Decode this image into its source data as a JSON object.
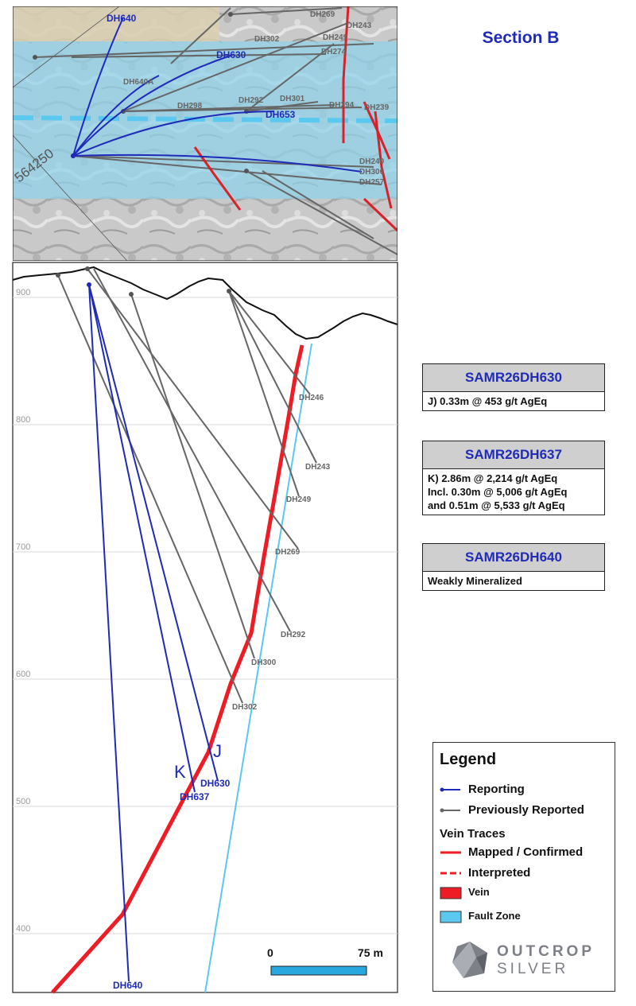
{
  "title": "Section B",
  "plan_map": {
    "grid_label": "564250",
    "holes": [
      "DH640",
      "DH630",
      "DH640A",
      "DH653",
      "DH269",
      "DH243",
      "DH302",
      "DH249",
      "DH274",
      "DH298",
      "DH292",
      "DH301",
      "DH294",
      "DH239",
      "DH240",
      "DH306",
      "DH257"
    ]
  },
  "section": {
    "elevations": [
      "900",
      "800",
      "700",
      "600",
      "500",
      "400"
    ],
    "hole_labels": [
      "DH246",
      "DH243",
      "DH249",
      "DH269",
      "DH292",
      "DH300",
      "DH302",
      "DH630",
      "DH637",
      "DH640"
    ],
    "intercept_labels": {
      "j": "J",
      "k": "K"
    }
  },
  "results": [
    {
      "hole": "SAMR26DH630",
      "lines": [
        "J) 0.33m @ 453 g/t AgEq"
      ]
    },
    {
      "hole": "SAMR26DH637",
      "lines": [
        "K) 2.86m @ 2,214 g/t AgEq",
        "Incl. 0.30m @ 5,006 g/t AgEq",
        "and 0.51m @ 5,533 g/t AgEq"
      ]
    },
    {
      "hole": "SAMR26DH640",
      "lines": [
        "Weakly Mineralized"
      ]
    }
  ],
  "legend": {
    "title": "Legend",
    "reporting": "Reporting",
    "previously_reported": "Previously Reported",
    "vein_traces": "Vein Traces",
    "mapped": "Mapped / Confirmed",
    "interpreted": "Interpreted",
    "vein": "Vein",
    "fault_zone": "Fault Zone",
    "scale_start": "0",
    "scale_end": "75 m"
  },
  "logo": {
    "line1": "OUTCROP",
    "line2": "SILVER"
  },
  "colors": {
    "reporting": "#1f2bb8",
    "previous": "#666666",
    "vein": "#ee1c25",
    "fault": "#5bc8ef",
    "fault_zone_plan": "#8fd3ea"
  }
}
